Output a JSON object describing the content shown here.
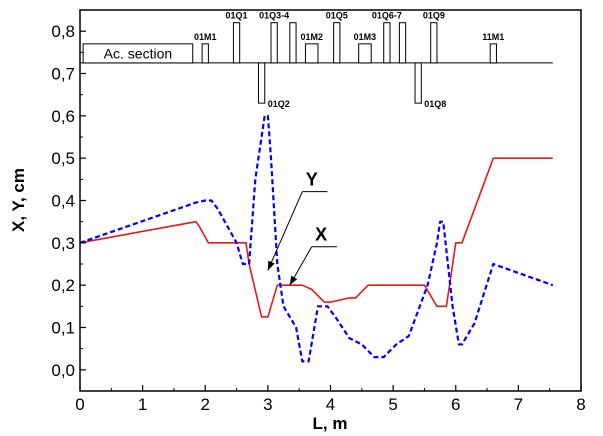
{
  "chart_data": {
    "type": "line",
    "xlabel": "L, m",
    "ylabel": "X, Y, cm",
    "xlim": [
      0,
      8
    ],
    "ylim": [
      -0.05,
      0.85
    ],
    "xticks": [
      "0",
      "1",
      "2",
      "3",
      "4",
      "5",
      "6",
      "7",
      "8"
    ],
    "yticks": [
      "0,0",
      "0,1",
      "0,2",
      "0,3",
      "0,4",
      "0,5",
      "0,6",
      "0,7",
      "0,8"
    ],
    "series": [
      {
        "name": "X",
        "color": "#e41a1c",
        "style": "solid",
        "x": [
          0,
          1.85,
          1.9,
          2.05,
          2.65,
          2.7,
          2.9,
          3.0,
          3.15,
          3.55,
          3.7,
          3.9,
          4.0,
          4.3,
          4.4,
          4.6,
          5.5,
          5.7,
          5.85,
          6.0,
          6.1,
          6.6,
          7.55
        ],
        "y": [
          0.3,
          0.35,
          0.34,
          0.3,
          0.3,
          0.25,
          0.125,
          0.125,
          0.2,
          0.2,
          0.19,
          0.16,
          0.16,
          0.17,
          0.17,
          0.2,
          0.2,
          0.15,
          0.15,
          0.3,
          0.3,
          0.5,
          0.5
        ]
      },
      {
        "name": "Y",
        "color": "#0000ff",
        "style": "dashed",
        "x": [
          0,
          1.85,
          2.0,
          2.1,
          2.2,
          2.5,
          2.6,
          2.7,
          2.8,
          2.95,
          3.0,
          3.05,
          3.15,
          3.25,
          3.45,
          3.55,
          3.65,
          3.8,
          3.95,
          4.1,
          4.3,
          4.5,
          4.7,
          4.85,
          5.05,
          5.25,
          5.4,
          5.55,
          5.7,
          5.75,
          5.8,
          5.95,
          6.05,
          6.1,
          6.3,
          6.6,
          7.55
        ],
        "y": [
          0.3,
          0.395,
          0.4,
          0.4,
          0.38,
          0.3,
          0.25,
          0.25,
          0.45,
          0.6,
          0.6,
          0.5,
          0.25,
          0.15,
          0.1,
          0.02,
          0.02,
          0.15,
          0.15,
          0.12,
          0.075,
          0.06,
          0.03,
          0.03,
          0.06,
          0.08,
          0.14,
          0.2,
          0.3,
          0.35,
          0.35,
          0.15,
          0.06,
          0.06,
          0.11,
          0.25,
          0.2
        ]
      }
    ],
    "series_labels": [
      "Y",
      "X"
    ],
    "lattice": {
      "baseline": 0.725,
      "end": 7.55,
      "elements": [
        {
          "name": "Ac. section",
          "start": 0.05,
          "end": 1.8,
          "height": 0.045
        },
        {
          "name": "01M1",
          "start": 1.95,
          "end": 2.05,
          "height": 0.045
        },
        {
          "name": "01Q1",
          "start": 2.45,
          "end": 2.55,
          "height": 0.095
        },
        {
          "name": "01Q2",
          "start": 2.85,
          "end": 2.95,
          "height": -0.095
        },
        {
          "name": "01Q3-4",
          "start": 3.05,
          "end": 3.15,
          "height": 0.095
        },
        {
          "name": "",
          "start": 3.35,
          "end": 3.45,
          "height": 0.095
        },
        {
          "name": "01M2",
          "start": 3.6,
          "end": 3.8,
          "height": 0.045
        },
        {
          "name": "01Q5",
          "start": 4.05,
          "end": 4.15,
          "height": 0.095
        },
        {
          "name": "01M3",
          "start": 4.45,
          "end": 4.65,
          "height": 0.045
        },
        {
          "name": "01Q6-7",
          "start": 4.85,
          "end": 4.95,
          "height": 0.095
        },
        {
          "name": "",
          "start": 5.1,
          "end": 5.2,
          "height": 0.095
        },
        {
          "name": "01Q8",
          "start": 5.35,
          "end": 5.45,
          "height": -0.095
        },
        {
          "name": "01Q9",
          "start": 5.6,
          "end": 5.7,
          "height": 0.095
        },
        {
          "name": "11M1",
          "start": 6.55,
          "end": 6.65,
          "height": 0.045
        }
      ]
    }
  }
}
